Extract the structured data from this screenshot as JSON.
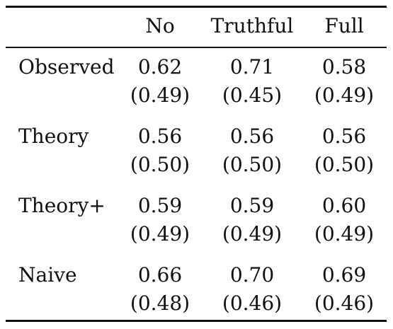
{
  "table": {
    "headers": [
      "",
      "No",
      "Truthful",
      "Full"
    ],
    "rows": [
      {
        "label": "Observed",
        "values": [
          "0.62",
          "0.71",
          "0.58"
        ],
        "se": [
          "(0.49)",
          "(0.45)",
          "(0.49)"
        ]
      },
      {
        "label": "Theory",
        "values": [
          "0.56",
          "0.56",
          "0.56"
        ],
        "se": [
          "(0.50)",
          "(0.50)",
          "(0.50)"
        ]
      },
      {
        "label": "Theory+",
        "values": [
          "0.59",
          "0.59",
          "0.60"
        ],
        "se": [
          "(0.49)",
          "(0.49)",
          "(0.49)"
        ]
      },
      {
        "label": "Naive",
        "values": [
          "0.66",
          "0.70",
          "0.69"
        ],
        "se": [
          "(0.48)",
          "(0.46)",
          "(0.46)"
        ]
      }
    ]
  }
}
